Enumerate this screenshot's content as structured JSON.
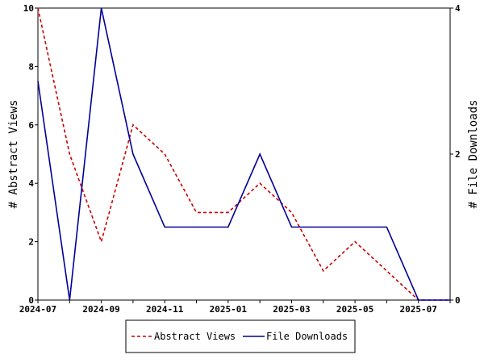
{
  "chart_data": {
    "type": "line",
    "x": [
      "2024-07",
      "2024-08",
      "2024-09",
      "2024-10",
      "2024-11",
      "2024-12",
      "2025-01",
      "2025-02",
      "2025-03",
      "2025-04",
      "2025-05",
      "2025-06",
      "2025-07",
      "2025-08"
    ],
    "x_ticks": [
      "2024-07",
      "2024-09",
      "2024-11",
      "2025-01",
      "2025-03",
      "2025-05",
      "2025-07"
    ],
    "series": [
      {
        "name": "Abstract Views",
        "axis": "left",
        "color": "#cc0000",
        "dash": "dashed",
        "values": [
          10,
          5,
          2,
          6,
          5,
          3,
          3,
          4,
          3,
          1,
          2,
          1,
          0,
          0
        ]
      },
      {
        "name": "File Downloads",
        "axis": "right",
        "color": "#000099",
        "dash": "solid",
        "values": [
          3,
          0,
          4,
          2,
          1,
          1,
          1,
          2,
          1,
          1,
          1,
          1,
          0,
          0
        ]
      }
    ],
    "ylabel": "# Abstract Views",
    "ylabel_right": "# File Downloads",
    "ylim": [
      0,
      10
    ],
    "ylim_right": [
      0,
      4
    ],
    "y_ticks": [
      0,
      2,
      4,
      6,
      8,
      10
    ],
    "y_ticks_right": [
      0,
      2,
      4
    ],
    "grid": false,
    "legend_position": "bottom"
  }
}
